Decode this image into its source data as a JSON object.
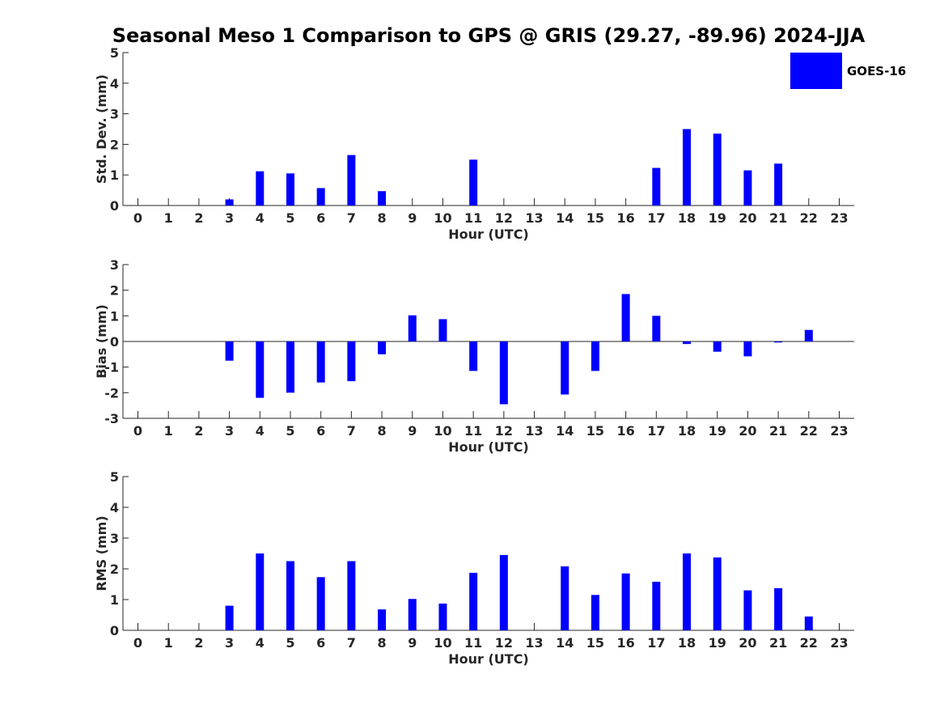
{
  "chart_data": {
    "title": "Seasonal Meso 1 Comparison to GPS @ GRIS (29.27, -89.96) 2024-JJA",
    "legend": {
      "label": "GOES-16",
      "color": "#0000ff",
      "placement": "top-right"
    },
    "panels": [
      {
        "type": "bar",
        "ylabel": "Std. Dev. (mm)",
        "xlabel": "Hour (UTC)",
        "categories": [
          "0",
          "1",
          "2",
          "3",
          "4",
          "5",
          "6",
          "7",
          "8",
          "9",
          "10",
          "11",
          "12",
          "13",
          "14",
          "15",
          "16",
          "17",
          "18",
          "19",
          "20",
          "21",
          "22",
          "23"
        ],
        "values": [
          0,
          0,
          0,
          0.2,
          1.12,
          1.05,
          0.57,
          1.65,
          0.47,
          0,
          0,
          1.5,
          0,
          0,
          0,
          0,
          0,
          1.23,
          2.5,
          2.35,
          1.15,
          1.37,
          0,
          0
        ],
        "ylim": [
          0,
          5
        ],
        "yticks": [
          "0",
          "1",
          "2",
          "3",
          "4",
          "5"
        ]
      },
      {
        "type": "bar",
        "ylabel": "Bias (mm)",
        "xlabel": "Hour (UTC)",
        "categories": [
          "0",
          "1",
          "2",
          "3",
          "4",
          "5",
          "6",
          "7",
          "8",
          "9",
          "10",
          "11",
          "12",
          "13",
          "14",
          "15",
          "16",
          "17",
          "18",
          "19",
          "20",
          "21",
          "22",
          "23"
        ],
        "values": [
          0,
          0,
          0,
          -0.75,
          -2.2,
          -2.0,
          -1.6,
          -1.55,
          -0.5,
          1.02,
          0.87,
          -1.15,
          -2.45,
          0,
          -2.07,
          -1.15,
          1.85,
          1.0,
          -0.1,
          -0.4,
          -0.58,
          -0.04,
          0.45,
          0
        ],
        "ylim": [
          -3,
          3
        ],
        "yticks": [
          "-3",
          "-2",
          "-1",
          "0",
          "1",
          "2",
          "3"
        ]
      },
      {
        "type": "bar",
        "ylabel": "RMS (mm)",
        "xlabel": "Hour (UTC)",
        "categories": [
          "0",
          "1",
          "2",
          "3",
          "4",
          "5",
          "6",
          "7",
          "8",
          "9",
          "10",
          "11",
          "12",
          "13",
          "14",
          "15",
          "16",
          "17",
          "18",
          "19",
          "20",
          "21",
          "22",
          "23"
        ],
        "values": [
          0,
          0,
          0,
          0.8,
          2.5,
          2.25,
          1.73,
          2.25,
          0.68,
          1.02,
          0.87,
          1.87,
          2.45,
          0,
          2.08,
          1.15,
          1.85,
          1.58,
          2.5,
          2.37,
          1.3,
          1.37,
          0.45,
          0
        ],
        "ylim": [
          0,
          5
        ],
        "yticks": [
          "0",
          "1",
          "2",
          "3",
          "4",
          "5"
        ]
      }
    ]
  }
}
